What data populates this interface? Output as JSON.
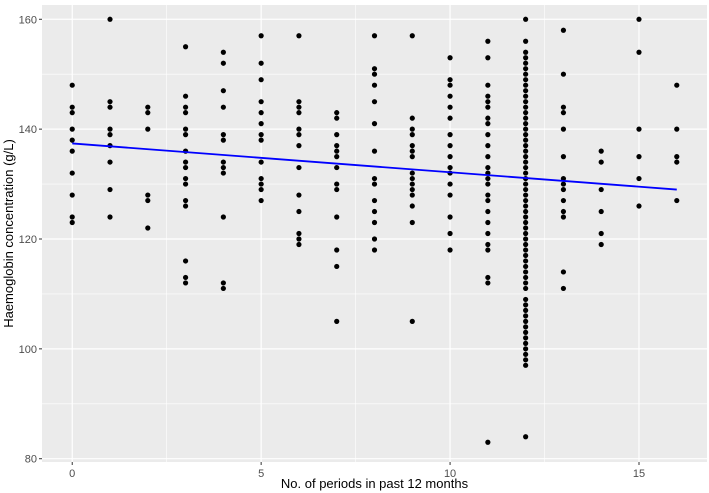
{
  "chart_data": {
    "type": "scatter",
    "title": "",
    "xlabel": "No. of periods in past 12 months",
    "ylabel": "Haemoglobin concentration (g/L)",
    "xlim": [
      -0.8,
      16.8
    ],
    "ylim": [
      79.4,
      162.6
    ],
    "x_ticks": [
      0,
      5,
      10,
      15
    ],
    "y_ticks": [
      80,
      100,
      120,
      140,
      160
    ],
    "x_tick_labels": [
      "0",
      "5",
      "10",
      "15"
    ],
    "y_tick_labels": [
      "80",
      "100",
      "120",
      "140",
      "160"
    ],
    "grid": true,
    "legend": "none",
    "colors": {
      "panel": "#ebebeb",
      "grid": "#ffffff",
      "points": "#000000",
      "trend": "#0000ff"
    },
    "trend_line": {
      "x": [
        0,
        16
      ],
      "y": [
        137.4,
        129.0
      ]
    },
    "points": [
      [
        0,
        148
      ],
      [
        0,
        144
      ],
      [
        0,
        143
      ],
      [
        0,
        140
      ],
      [
        0,
        138
      ],
      [
        0,
        136
      ],
      [
        0,
        132
      ],
      [
        0,
        128
      ],
      [
        0,
        124
      ],
      [
        0,
        123
      ],
      [
        1,
        160
      ],
      [
        1,
        145
      ],
      [
        1,
        144
      ],
      [
        1,
        140
      ],
      [
        1,
        139
      ],
      [
        1,
        137
      ],
      [
        1,
        134
      ],
      [
        1,
        129
      ],
      [
        1,
        124
      ],
      [
        2,
        144
      ],
      [
        2,
        143
      ],
      [
        2,
        140
      ],
      [
        2,
        128
      ],
      [
        2,
        127
      ],
      [
        2,
        122
      ],
      [
        3,
        155
      ],
      [
        3,
        146
      ],
      [
        3,
        144
      ],
      [
        3,
        143
      ],
      [
        3,
        140
      ],
      [
        3,
        139
      ],
      [
        3,
        136
      ],
      [
        3,
        134
      ],
      [
        3,
        133
      ],
      [
        3,
        131
      ],
      [
        3,
        130
      ],
      [
        3,
        127
      ],
      [
        3,
        126
      ],
      [
        3,
        116
      ],
      [
        3,
        113
      ],
      [
        3,
        112
      ],
      [
        4,
        154
      ],
      [
        4,
        152
      ],
      [
        4,
        147
      ],
      [
        4,
        144
      ],
      [
        4,
        139
      ],
      [
        4,
        138
      ],
      [
        4,
        134
      ],
      [
        4,
        133
      ],
      [
        4,
        132
      ],
      [
        4,
        124
      ],
      [
        4,
        112
      ],
      [
        4,
        111
      ],
      [
        5,
        157
      ],
      [
        5,
        152
      ],
      [
        5,
        149
      ],
      [
        5,
        145
      ],
      [
        5,
        143
      ],
      [
        5,
        141
      ],
      [
        5,
        139
      ],
      [
        5,
        138
      ],
      [
        5,
        134
      ],
      [
        5,
        131
      ],
      [
        5,
        130
      ],
      [
        5,
        129
      ],
      [
        5,
        127
      ],
      [
        6,
        157
      ],
      [
        6,
        145
      ],
      [
        6,
        144
      ],
      [
        6,
        143
      ],
      [
        6,
        140
      ],
      [
        6,
        139
      ],
      [
        6,
        137
      ],
      [
        6,
        133
      ],
      [
        6,
        128
      ],
      [
        6,
        125
      ],
      [
        6,
        121
      ],
      [
        6,
        120
      ],
      [
        6,
        119
      ],
      [
        7,
        143
      ],
      [
        7,
        142
      ],
      [
        7,
        139
      ],
      [
        7,
        137
      ],
      [
        7,
        136
      ],
      [
        7,
        135
      ],
      [
        7,
        133
      ],
      [
        7,
        130
      ],
      [
        7,
        129
      ],
      [
        7,
        124
      ],
      [
        7,
        118
      ],
      [
        7,
        115
      ],
      [
        7,
        105
      ],
      [
        8,
        157
      ],
      [
        8,
        151
      ],
      [
        8,
        150
      ],
      [
        8,
        148
      ],
      [
        8,
        145
      ],
      [
        8,
        141
      ],
      [
        8,
        136
      ],
      [
        8,
        131
      ],
      [
        8,
        130
      ],
      [
        8,
        127
      ],
      [
        8,
        125
      ],
      [
        8,
        123
      ],
      [
        8,
        120
      ],
      [
        8,
        118
      ],
      [
        9,
        157
      ],
      [
        9,
        142
      ],
      [
        9,
        140
      ],
      [
        9,
        139
      ],
      [
        9,
        137
      ],
      [
        9,
        136
      ],
      [
        9,
        135
      ],
      [
        9,
        132
      ],
      [
        9,
        131
      ],
      [
        9,
        130
      ],
      [
        9,
        129
      ],
      [
        9,
        128
      ],
      [
        9,
        126
      ],
      [
        9,
        123
      ],
      [
        9,
        105
      ],
      [
        10,
        153
      ],
      [
        10,
        149
      ],
      [
        10,
        148
      ],
      [
        10,
        146
      ],
      [
        10,
        144
      ],
      [
        10,
        142
      ],
      [
        10,
        139
      ],
      [
        10,
        137
      ],
      [
        10,
        135
      ],
      [
        10,
        133
      ],
      [
        10,
        132
      ],
      [
        10,
        130
      ],
      [
        10,
        128
      ],
      [
        10,
        124
      ],
      [
        10,
        121
      ],
      [
        10,
        118
      ],
      [
        11,
        156
      ],
      [
        11,
        153
      ],
      [
        11,
        148
      ],
      [
        11,
        146
      ],
      [
        11,
        145
      ],
      [
        11,
        144
      ],
      [
        11,
        142
      ],
      [
        11,
        141
      ],
      [
        11,
        139
      ],
      [
        11,
        137
      ],
      [
        11,
        135
      ],
      [
        11,
        133
      ],
      [
        11,
        132
      ],
      [
        11,
        131
      ],
      [
        11,
        130
      ],
      [
        11,
        128
      ],
      [
        11,
        127
      ],
      [
        11,
        125
      ],
      [
        11,
        123
      ],
      [
        11,
        121
      ],
      [
        11,
        119
      ],
      [
        11,
        118
      ],
      [
        11,
        113
      ],
      [
        11,
        112
      ],
      [
        11,
        83
      ],
      [
        12,
        160
      ],
      [
        12,
        156
      ],
      [
        12,
        154
      ],
      [
        12,
        153
      ],
      [
        12,
        152
      ],
      [
        12,
        151
      ],
      [
        12,
        150
      ],
      [
        12,
        149
      ],
      [
        12,
        148
      ],
      [
        12,
        147
      ],
      [
        12,
        146
      ],
      [
        12,
        145
      ],
      [
        12,
        144
      ],
      [
        12,
        143
      ],
      [
        12,
        142
      ],
      [
        12,
        141
      ],
      [
        12,
        140
      ],
      [
        12,
        139
      ],
      [
        12,
        138
      ],
      [
        12,
        137
      ],
      [
        12,
        136
      ],
      [
        12,
        135
      ],
      [
        12,
        134
      ],
      [
        12,
        133
      ],
      [
        12,
        132
      ],
      [
        12,
        131
      ],
      [
        12,
        130
      ],
      [
        12,
        129
      ],
      [
        12,
        128
      ],
      [
        12,
        127
      ],
      [
        12,
        126
      ],
      [
        12,
        125
      ],
      [
        12,
        124
      ],
      [
        12,
        123
      ],
      [
        12,
        122
      ],
      [
        12,
        121
      ],
      [
        12,
        120
      ],
      [
        12,
        119
      ],
      [
        12,
        118
      ],
      [
        12,
        117
      ],
      [
        12,
        116
      ],
      [
        12,
        115
      ],
      [
        12,
        114
      ],
      [
        12,
        113
      ],
      [
        12,
        112
      ],
      [
        12,
        111
      ],
      [
        12,
        109
      ],
      [
        12,
        108
      ],
      [
        12,
        107
      ],
      [
        12,
        106
      ],
      [
        12,
        105
      ],
      [
        12,
        104
      ],
      [
        12,
        103
      ],
      [
        12,
        102
      ],
      [
        12,
        101
      ],
      [
        12,
        100
      ],
      [
        12,
        99
      ],
      [
        12,
        98
      ],
      [
        12,
        97
      ],
      [
        12,
        84
      ],
      [
        13,
        158
      ],
      [
        13,
        150
      ],
      [
        13,
        144
      ],
      [
        13,
        143
      ],
      [
        13,
        140
      ],
      [
        13,
        135
      ],
      [
        13,
        131
      ],
      [
        13,
        130
      ],
      [
        13,
        129
      ],
      [
        13,
        127
      ],
      [
        13,
        125
      ],
      [
        13,
        124
      ],
      [
        13,
        114
      ],
      [
        13,
        111
      ],
      [
        14,
        136
      ],
      [
        14,
        134
      ],
      [
        14,
        129
      ],
      [
        14,
        125
      ],
      [
        14,
        121
      ],
      [
        14,
        119
      ],
      [
        15,
        160
      ],
      [
        15,
        154
      ],
      [
        15,
        140
      ],
      [
        15,
        135
      ],
      [
        15,
        131
      ],
      [
        15,
        126
      ],
      [
        16,
        148
      ],
      [
        16,
        140
      ],
      [
        16,
        135
      ],
      [
        16,
        134
      ],
      [
        16,
        127
      ]
    ]
  }
}
